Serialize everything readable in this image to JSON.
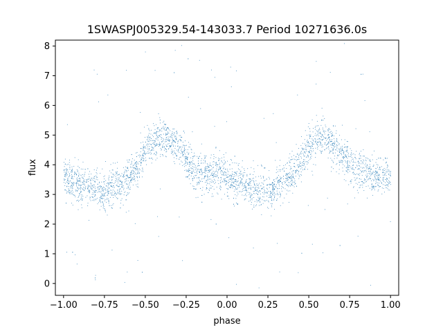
{
  "chart_data": {
    "type": "scatter",
    "title": "1SWASPJ005329.54-143033.7 Period 10271636.0s",
    "xlabel": "phase",
    "ylabel": "flux",
    "xlim": [
      -1.05,
      1.05
    ],
    "ylim": [
      -0.4,
      8.2
    ],
    "xticks": [
      -1.0,
      -0.75,
      -0.5,
      -0.25,
      0.0,
      0.25,
      0.5,
      0.75,
      1.0
    ],
    "xtick_labels": [
      "−1.00",
      "−0.75",
      "−0.50",
      "−0.25",
      "0.00",
      "0.25",
      "0.50",
      "0.75",
      "1.00"
    ],
    "yticks": [
      0,
      1,
      2,
      3,
      4,
      5,
      6,
      7,
      8
    ],
    "ytick_labels": [
      "0",
      "1",
      "2",
      "3",
      "4",
      "5",
      "6",
      "7",
      "8"
    ],
    "grid": false,
    "point_color": "#1f77b4",
    "phase_range": [
      -1.0,
      1.0
    ],
    "series": [
      {
        "profile_x": [
          -1.0,
          -0.95,
          -0.9,
          -0.85,
          -0.8,
          -0.75,
          -0.7,
          -0.65,
          -0.6,
          -0.55,
          -0.5,
          -0.45,
          -0.4,
          -0.35,
          -0.3,
          -0.25,
          -0.2,
          -0.15,
          -0.1,
          -0.05,
          0.0,
          0.05,
          0.1,
          0.15,
          0.2,
          0.25,
          0.3,
          0.35,
          0.4,
          0.45,
          0.5,
          0.55,
          0.6,
          0.65,
          0.7,
          0.75,
          0.8,
          0.85,
          0.9,
          0.95,
          1.0
        ],
        "profile_y": [
          3.6,
          3.4,
          3.3,
          3.3,
          3.2,
          3.1,
          3.3,
          3.4,
          3.6,
          3.9,
          4.5,
          4.8,
          4.9,
          4.9,
          4.6,
          4.2,
          3.8,
          3.7,
          3.7,
          3.8,
          3.6,
          3.4,
          3.3,
          3.2,
          3.1,
          3.1,
          3.3,
          3.5,
          3.7,
          4.1,
          4.7,
          4.9,
          4.9,
          4.7,
          4.4,
          4.0,
          3.8,
          3.7,
          3.6,
          3.6,
          3.6
        ]
      }
    ]
  }
}
